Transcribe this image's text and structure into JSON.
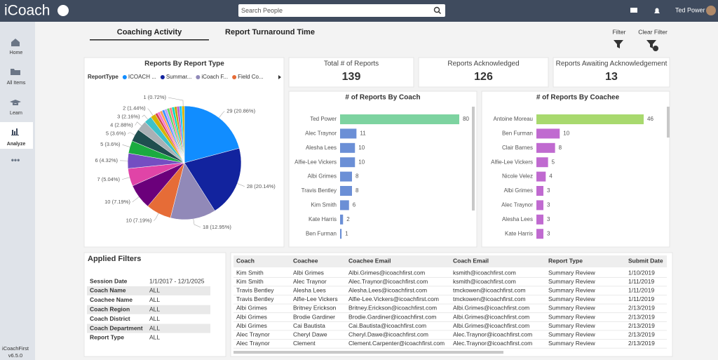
{
  "header": {
    "logo": "iCoach",
    "search_placeholder": "Search People",
    "user": "Ted Power"
  },
  "sidebar": {
    "items": [
      "Home",
      "All Items",
      "Learn",
      "Analyze"
    ],
    "active": 3,
    "product": "iCoachFirst",
    "version": "v6.5.0"
  },
  "tabs": [
    "Coaching Activity",
    "Report Turnaround Time"
  ],
  "actions": [
    "Filter",
    "Clear Filter"
  ],
  "kpis": [
    {
      "label": "Total # of Reports",
      "value": 139
    },
    {
      "label": "Reports Acknowledged",
      "value": 126
    },
    {
      "label": "Reports Awaiting Acknowledgement",
      "value": 13
    }
  ],
  "chart_data": [
    {
      "type": "pie",
      "title": "Reports By Report Type",
      "legend_title": "ReportType",
      "legend": [
        {
          "name": "ICOACH ...",
          "color": "#118dff"
        },
        {
          "name": "Summar...",
          "color": "#12239e"
        },
        {
          "name": "iCoach F...",
          "color": "#9189b8"
        },
        {
          "name": "Field Co...",
          "color": "#e66c37"
        }
      ],
      "values": [
        29,
        28,
        18,
        10,
        10,
        7,
        6,
        5,
        5,
        4,
        3,
        2,
        1,
        1,
        1,
        1,
        1,
        1,
        1,
        1,
        1,
        1,
        1,
        1
      ],
      "value_labels": [
        "29 (20.86%)",
        "28 (20.14%)",
        "18 (12.95%)",
        "10 (7.19%)",
        "10 (7.19%)",
        "7 (5.04%)",
        "6 (4.32%)",
        "5 (3.6%)",
        "5 (3.6%)",
        "4 (2.88%)",
        "3 (2.16%)",
        "2 (1.44%)",
        null,
        null,
        null,
        null,
        null,
        null,
        null,
        null,
        null,
        null,
        null,
        "1 (0.72%)"
      ],
      "colors": [
        "#118dff",
        "#12239e",
        "#9189b8",
        "#e66c37",
        "#6b007b",
        "#e044a7",
        "#744ec2",
        "#1aab40",
        "#1f4e4f",
        "#a9b0b5",
        "#3ec1c9",
        "#d9b300",
        "#d64550",
        "#f472d0",
        "#ffa058",
        "#4092ff",
        "#b5a1ff",
        "#5bd667",
        "#ff8080",
        "#00dbbc",
        "#c4a200",
        "#be5dc9",
        "#15c6f4",
        "#d9b300"
      ]
    },
    {
      "type": "bar",
      "title": "# of Reports By Coach",
      "categories": [
        "Ted Power",
        "Alec Traynor",
        "Alesha Lees",
        "Alfie-Lee Vickers",
        "Albi Grimes",
        "Travis Bentley",
        "Kim Smith",
        "Kate Harris",
        "Ben Furman"
      ],
      "values": [
        80,
        11,
        10,
        10,
        8,
        8,
        6,
        2,
        1
      ],
      "colors": [
        "#7dd3a0",
        "#6b8fd6",
        "#6b8fd6",
        "#6b8fd6",
        "#6b8fd6",
        "#6b8fd6",
        "#6b8fd6",
        "#6b8fd6",
        "#6b8fd6"
      ]
    },
    {
      "type": "bar",
      "title": "# of Reports By Coachee",
      "categories": [
        "Antoine Moreau",
        "Ben Furman",
        "Clair Barnes",
        "Alfie-Lee Vickers",
        "Nicole Velez",
        "Albi Grimes",
        "Alec Traynor",
        "Alesha Lees",
        "Kate Harris"
      ],
      "values": [
        46,
        10,
        8,
        5,
        4,
        3,
        3,
        3,
        3
      ],
      "colors": [
        "#a8d96e",
        "#c06ad0",
        "#c06ad0",
        "#c06ad0",
        "#c06ad0",
        "#c06ad0",
        "#c06ad0",
        "#c06ad0",
        "#c06ad0"
      ]
    }
  ],
  "filters": {
    "title": "Applied Filters",
    "rows": [
      [
        "Session Date",
        "1/1/2017 - 12/1/2025"
      ],
      [
        "Coach Name",
        "ALL"
      ],
      [
        "Coachee Name",
        "ALL"
      ],
      [
        "Coach Region",
        "ALL"
      ],
      [
        "Coach District",
        "ALL"
      ],
      [
        "Coach Department",
        "ALL"
      ],
      [
        "Report Type",
        "ALL"
      ]
    ]
  },
  "table": {
    "columns": [
      "Coach",
      "Coachee",
      "Coachee Email",
      "Coach Email",
      "Report Type",
      "Submit Date"
    ],
    "rows": [
      [
        "Kim Smith",
        "Albi Grimes",
        "Albi.Grimes@icoachfirst.com",
        "ksmith@icoachfirst.com",
        "Summary Review",
        "1/10/2019"
      ],
      [
        "Kim Smith",
        "Alec Traynor",
        "Alec.Traynor@icoachfirst.com",
        "ksmith@icoachfirst.com",
        "Summary Review",
        "1/11/2019"
      ],
      [
        "Travis Bentley",
        "Alesha Lees",
        "Alesha.Lees@icoachfirst.com",
        "tmckowen@icoachfirst.com",
        "Summary Review",
        "1/11/2019"
      ],
      [
        "Travis Bentley",
        "Alfie-Lee Vickers",
        "Alfie-Lee.Vickers@icoachfirst.com",
        "tmckowen@icoachfirst.com",
        "Summary Review",
        "1/11/2019"
      ],
      [
        "Albi Grimes",
        "Britney Erickson",
        "Britney.Erickson@icoachfirst.com",
        "Albi.Grimes@icoachfirst.com",
        "Summary Review",
        "2/13/2019"
      ],
      [
        "Albi Grimes",
        "Brodie Gardiner",
        "Brodie.Gardiner@icoachfirst.com",
        "Albi.Grimes@icoachfirst.com",
        "Summary Review",
        "2/13/2019"
      ],
      [
        "Albi Grimes",
        "Cai Bautista",
        "Cai.Bautista@icoachfirst.com",
        "Albi.Grimes@icoachfirst.com",
        "Summary Review",
        "2/13/2019"
      ],
      [
        "Alec Traynor",
        "Cheryl Dawe",
        "Cheryl.Dawe@icoachfirst.com",
        "Alec.Traynor@icoachfirst.com",
        "Summary Review",
        "2/13/2019"
      ],
      [
        "Alec Traynor",
        "Clement",
        "Clement.Carpenter@icoachfirst.com",
        "Alec.Traynor@icoachfirst.com",
        "Summary Review",
        "2/13/2019"
      ]
    ]
  }
}
